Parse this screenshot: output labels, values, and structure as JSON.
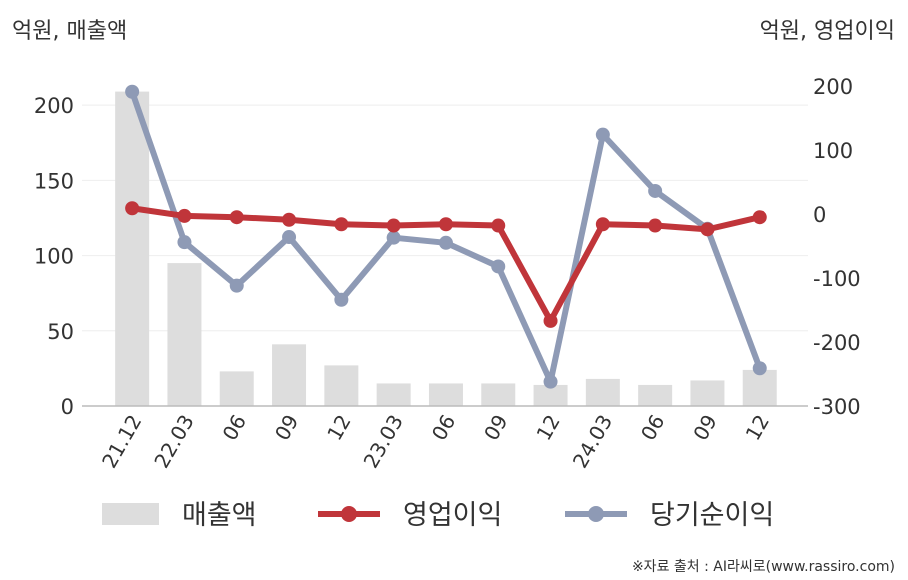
{
  "chart_data": {
    "type": "bar+line",
    "left_axis_unit": "억원, 매출액",
    "right_axis_unit": "억원, 영업이익",
    "categories": [
      "21.12",
      "22.03",
      "06",
      "09",
      "12",
      "23.03",
      "06",
      "09",
      "12",
      "24.03",
      "06",
      "09",
      "12"
    ],
    "left_ticks": [
      "0",
      "50",
      "100",
      "150",
      "200"
    ],
    "right_ticks": [
      "-300",
      "-200",
      "-100",
      "0",
      "100",
      "200"
    ],
    "left_ylim": [
      0,
      230
    ],
    "right_ylim": [
      -300,
      200
    ],
    "grid": true,
    "legend_position": "bottom",
    "series": [
      {
        "name": "매출액",
        "type": "bar",
        "axis": "left",
        "color": "#dddddd",
        "values": [
          209,
          95,
          23,
          41,
          27,
          15,
          15,
          15,
          14,
          18,
          14,
          17,
          24
        ]
      },
      {
        "name": "영업이익",
        "type": "line",
        "axis": "right",
        "color": "#c0353a",
        "values": [
          9,
          -3,
          -5,
          -9,
          -16,
          -18,
          -16,
          -18,
          -167,
          -16,
          -18,
          -24,
          -5
        ]
      },
      {
        "name": "당기순이익",
        "type": "line",
        "axis": "right",
        "color": "#8e9ab5",
        "values": [
          191,
          -44,
          -112,
          -36,
          -134,
          -37,
          -45,
          -82,
          -262,
          124,
          36,
          -23,
          -241
        ]
      }
    ]
  },
  "source": "※자료 출처 : AI라씨로(www.rassiro.com)"
}
